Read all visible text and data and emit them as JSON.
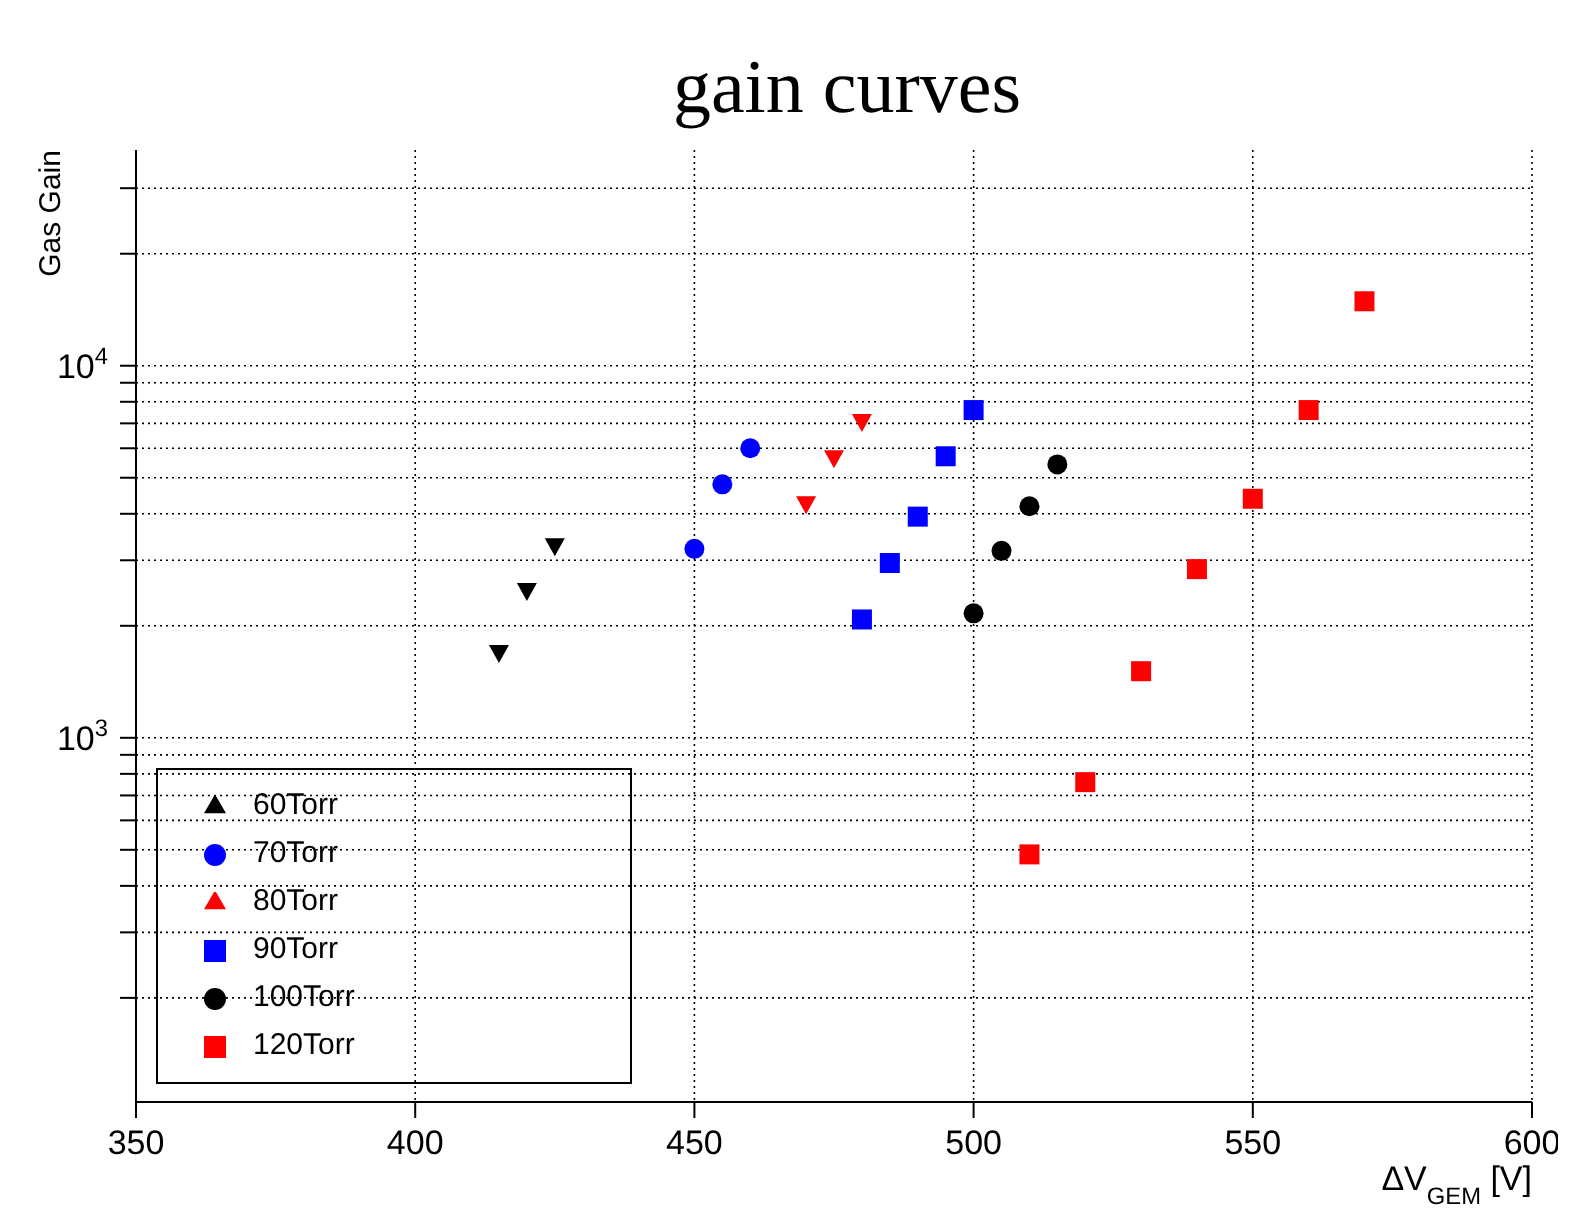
{
  "chart_data": {
    "type": "scatter",
    "title": "gain curves",
    "xlabel": "ΔV$_{GEM}$ [V]",
    "ylabel": "Gas Gain",
    "log": "y",
    "grid": true,
    "legend": "bottom left",
    "xlim": [
      350,
      600
    ],
    "xticks": [
      350,
      400,
      450,
      500,
      550,
      600
    ],
    "ylim": [
      105,
      38000
    ],
    "yticks": [
      {
        "value": 200,
        "label": null
      },
      {
        "value": 300,
        "label": null
      },
      {
        "value": 400,
        "label": null
      },
      {
        "value": 500,
        "label": null
      },
      {
        "value": 600,
        "label": null
      },
      {
        "value": 700,
        "label": null
      },
      {
        "value": 800,
        "label": null
      },
      {
        "value": 900,
        "label": null
      },
      {
        "value": 1000,
        "label": "10$^{3}$"
      },
      {
        "value": 2000,
        "label": null
      },
      {
        "value": 3000,
        "label": null
      },
      {
        "value": 4000,
        "label": null
      },
      {
        "value": 5000,
        "label": null
      },
      {
        "value": 6000,
        "label": null
      },
      {
        "value": 7000,
        "label": null
      },
      {
        "value": 8000,
        "label": null
      },
      {
        "value": 9000,
        "label": null
      },
      {
        "value": 10000,
        "label": "10$^{4}$"
      },
      {
        "value": 20000,
        "label": null
      },
      {
        "value": 30000,
        "label": null
      }
    ],
    "series": [
      {
        "name": "60Torr",
        "color": "#000000",
        "marker": "triangle",
        "x": [
          415,
          420,
          425
        ],
        "values": [
          1690,
          2480,
          3270
        ]
      },
      {
        "name": "70Torr",
        "color": "#0000ff",
        "marker": "circle",
        "x": [
          450,
          455,
          460
        ],
        "values": [
          3220,
          4800,
          6000
        ]
      },
      {
        "name": "80Torr",
        "color": "#ff0000",
        "marker": "triangle",
        "x": [
          470,
          475,
          480
        ],
        "values": [
          4240,
          5640,
          7060
        ]
      },
      {
        "name": "90Torr",
        "color": "#0000ff",
        "marker": "square",
        "x": [
          480,
          485,
          490,
          495,
          500
        ],
        "values": [
          2080,
          2950,
          3930,
          5710,
          7600
        ]
      },
      {
        "name": "100Torr",
        "color": "#000000",
        "marker": "circle",
        "x": [
          500,
          505,
          510,
          515
        ],
        "values": [
          2160,
          3180,
          4190,
          5430
        ]
      },
      {
        "name": "120Torr",
        "color": "#ff0000",
        "marker": "square",
        "x": [
          510,
          520,
          530,
          540,
          550,
          560,
          570
        ],
        "values": [
          486,
          760,
          1510,
          2840,
          4390,
          7600,
          14900
        ]
      }
    ]
  }
}
